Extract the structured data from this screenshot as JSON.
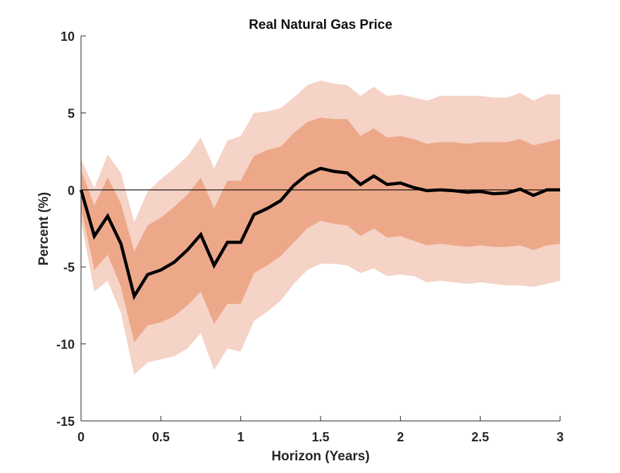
{
  "chart_data": {
    "type": "area",
    "title": "Real Natural Gas Price",
    "xlabel": "Horizon (Years)",
    "ylabel": "Percent (%)",
    "xlim": [
      0,
      3
    ],
    "ylim": [
      -15,
      10
    ],
    "xticks": [
      0,
      0.5,
      1,
      1.5,
      2,
      2.5,
      3
    ],
    "xtick_labels": [
      "0",
      "0.5",
      "1",
      "1.5",
      "2",
      "2.5",
      "3"
    ],
    "yticks": [
      10,
      5,
      0,
      -5,
      -10,
      -15
    ],
    "ytick_labels": [
      "10",
      "5",
      "0",
      "-5",
      "-10",
      "-15"
    ],
    "zero_line": 0,
    "colors": {
      "outer_band": "#f5d3c6",
      "inner_band": "#eda88a",
      "median_line": "#000000",
      "zero_line": "#000000",
      "axis": "#262626"
    },
    "x": [
      0,
      0.0833,
      0.1667,
      0.25,
      0.3333,
      0.4167,
      0.5,
      0.5833,
      0.6667,
      0.75,
      0.8333,
      0.9167,
      1,
      1.0833,
      1.1667,
      1.25,
      1.3333,
      1.4167,
      1.5,
      1.5833,
      1.6667,
      1.75,
      1.8333,
      1.9167,
      2,
      2.0833,
      2.1667,
      2.25,
      2.3333,
      2.4167,
      2.5,
      2.5833,
      2.6667,
      2.75,
      2.8333,
      2.9167,
      3
    ],
    "series": [
      {
        "name": "median",
        "values": [
          0.0,
          -3.0,
          -1.7,
          -3.5,
          -6.9,
          -5.5,
          -5.2,
          -4.7,
          -3.9,
          -2.9,
          -4.9,
          -3.4,
          -3.4,
          -1.6,
          -1.2,
          -0.7,
          0.3,
          1.0,
          1.4,
          1.2,
          1.1,
          0.35,
          0.9,
          0.35,
          0.45,
          0.15,
          -0.05,
          0.0,
          -0.05,
          -0.15,
          -0.1,
          -0.25,
          -0.2,
          0.05,
          -0.35,
          0.0,
          0.0
        ]
      },
      {
        "name": "inner_band_upper",
        "values": [
          1.3,
          -1.0,
          0.8,
          -0.9,
          -4.0,
          -2.3,
          -1.8,
          -1.1,
          -0.3,
          0.8,
          -1.2,
          0.6,
          0.6,
          2.2,
          2.6,
          2.8,
          3.7,
          4.4,
          4.7,
          4.6,
          4.6,
          3.5,
          4.0,
          3.4,
          3.5,
          3.3,
          3.0,
          3.1,
          3.1,
          3.0,
          3.1,
          3.1,
          3.1,
          3.3,
          2.9,
          3.1,
          3.3
        ]
      },
      {
        "name": "inner_band_lower",
        "values": [
          -1.2,
          -5.2,
          -4.2,
          -6.3,
          -9.9,
          -8.8,
          -8.6,
          -8.2,
          -7.5,
          -6.6,
          -8.7,
          -7.4,
          -7.4,
          -5.4,
          -4.9,
          -4.3,
          -3.4,
          -2.5,
          -2.0,
          -2.2,
          -2.3,
          -3.0,
          -2.5,
          -3.1,
          -3.0,
          -3.3,
          -3.6,
          -3.5,
          -3.6,
          -3.7,
          -3.6,
          -3.7,
          -3.7,
          -3.6,
          -3.9,
          -3.6,
          -3.5
        ]
      },
      {
        "name": "outer_band_upper",
        "values": [
          2.0,
          0.1,
          2.3,
          1.1,
          -2.1,
          -0.1,
          0.7,
          1.4,
          2.2,
          3.4,
          1.4,
          3.2,
          3.5,
          5.0,
          5.1,
          5.3,
          6.0,
          6.8,
          7.1,
          6.9,
          6.8,
          6.1,
          6.7,
          6.1,
          6.2,
          6.0,
          5.8,
          6.1,
          6.1,
          6.1,
          6.1,
          6.0,
          6.0,
          6.3,
          5.8,
          6.2,
          6.2
        ]
      },
      {
        "name": "outer_band_lower",
        "values": [
          -2.0,
          -6.6,
          -5.9,
          -8.0,
          -12.0,
          -11.2,
          -11.0,
          -10.8,
          -10.3,
          -9.3,
          -11.7,
          -10.3,
          -10.5,
          -8.5,
          -7.9,
          -7.2,
          -6.1,
          -5.2,
          -4.8,
          -4.8,
          -4.9,
          -5.4,
          -5.1,
          -5.6,
          -5.5,
          -5.6,
          -6.0,
          -5.9,
          -6.0,
          -6.1,
          -6.0,
          -6.1,
          -6.2,
          -6.2,
          -6.3,
          -6.1,
          -5.9
        ]
      }
    ],
    "grid": false,
    "legend": "none"
  }
}
